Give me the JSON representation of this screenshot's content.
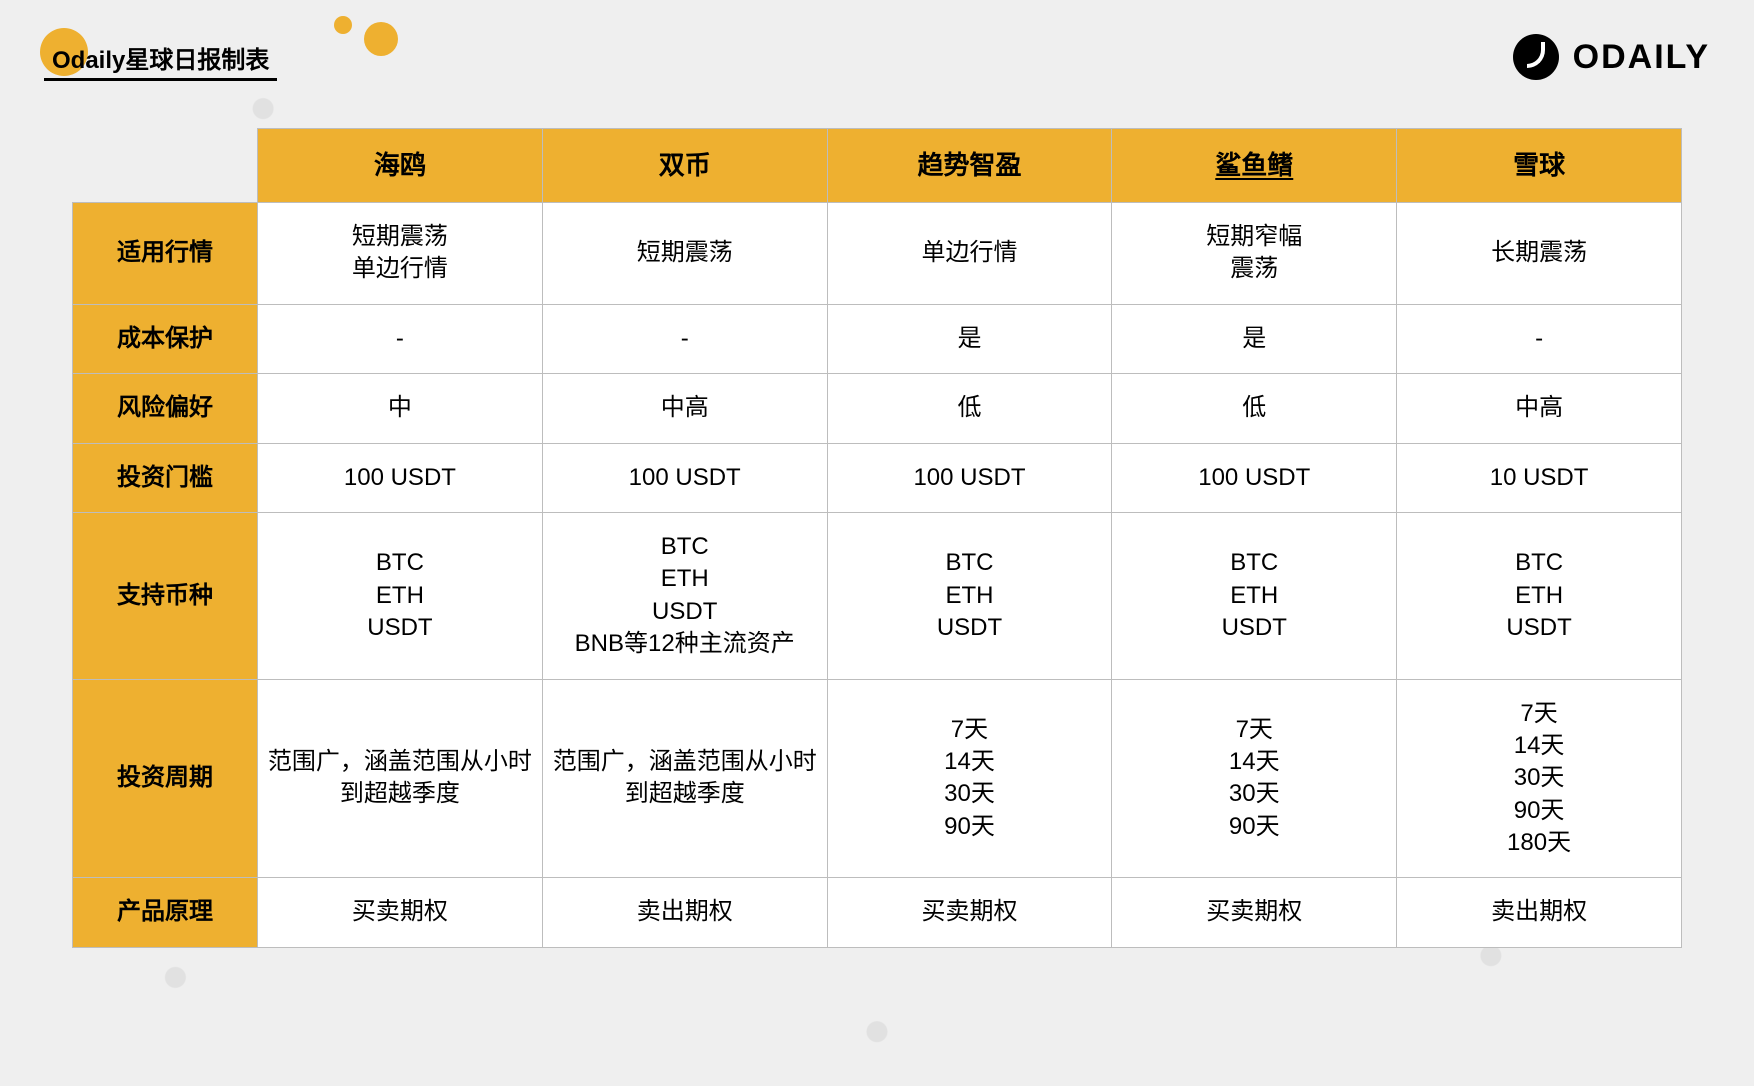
{
  "colors": {
    "accent": "#eeb030",
    "accent_dark": "#e8a828",
    "page_bg": "#efefef",
    "cell_bg": "#ffffff",
    "border": "#bdbdbd",
    "text": "#000000"
  },
  "header": {
    "title": "Odaily星球日报制表",
    "logo_text": "ODAILY"
  },
  "table": {
    "type": "table",
    "header_bg": "#eeb030",
    "rowhead_bg": "#eeb030",
    "cell_bg": "#ffffff",
    "border_color": "#bdbdbd",
    "header_fontsize": 26,
    "cell_fontsize": 24,
    "columns": [
      {
        "label": "海鸥",
        "underline": false
      },
      {
        "label": "双币",
        "underline": false
      },
      {
        "label": "趋势智盈",
        "underline": false
      },
      {
        "label": "鲨鱼鳍",
        "underline": true
      },
      {
        "label": "雪球",
        "underline": false
      }
    ],
    "rows": [
      {
        "label": "适用行情",
        "cells": [
          "短期震荡\n单边行情",
          "短期震荡",
          "单边行情",
          "短期窄幅\n震荡",
          "长期震荡"
        ]
      },
      {
        "label": "成本保护",
        "cells": [
          "-",
          "-",
          "是",
          "是",
          "-"
        ]
      },
      {
        "label": "风险偏好",
        "cells": [
          "中",
          "中高",
          "低",
          "低",
          "中高"
        ]
      },
      {
        "label": "投资门槛",
        "cells": [
          "100 USDT",
          "100 USDT",
          "100 USDT",
          "100 USDT",
          "10  USDT"
        ]
      },
      {
        "label": "支持币种",
        "cells": [
          "BTC\nETH\nUSDT",
          "BTC\nETH\nUSDT\nBNB等12种主流资产",
          "BTC\nETH\nUSDT",
          "BTC\nETH\nUSDT",
          "BTC\nETH\nUSDT"
        ]
      },
      {
        "label": "投资周期",
        "cells": [
          "范围广，涵盖范围从小时到超越季度",
          "范围广，涵盖范围从小时到超越季度",
          "7天\n14天\n30天\n90天",
          "7天\n14天\n30天\n90天",
          "7天\n14天\n30天\n90天\n180天"
        ]
      },
      {
        "label": "产品原理",
        "cells": [
          "买卖期权",
          "卖出期权",
          "买卖期权",
          "买卖期权",
          "卖出期权"
        ]
      }
    ]
  }
}
